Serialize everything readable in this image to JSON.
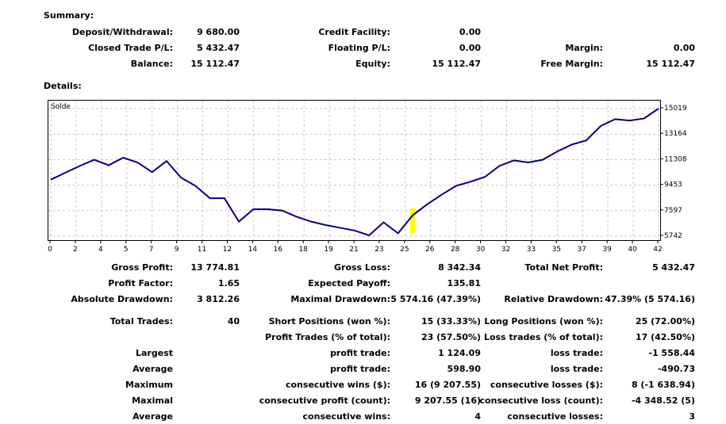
{
  "summary": {
    "heading": "Summary:",
    "deposit_label": "Deposit/Withdrawal:",
    "deposit_value": "9 680.00",
    "credit_label": "Credit Facility:",
    "credit_value": "0.00",
    "closed_label": "Closed Trade P/L:",
    "closed_value": "5 432.47",
    "floating_label": "Floating P/L:",
    "floating_value": "0.00",
    "margin_label": "Margin:",
    "margin_value": "0.00",
    "balance_label": "Balance:",
    "balance_value": "15 112.47",
    "equity_label": "Equity:",
    "equity_value": "15 112.47",
    "free_margin_label": "Free Margin:",
    "free_margin_value": "15 112.47"
  },
  "details": {
    "heading": "Details:",
    "gross_profit_label": "Gross Profit:",
    "gross_profit_value": "13 774.81",
    "gross_loss_label": "Gross Loss:",
    "gross_loss_value": "8 342.34",
    "total_net_label": "Total Net Profit:",
    "total_net_value": "5 432.47",
    "profit_factor_label": "Profit Factor:",
    "profit_factor_value": "1.65",
    "expected_payoff_label": "Expected Payoff:",
    "expected_payoff_value": "135.81",
    "abs_dd_label": "Absolute Drawdown:",
    "abs_dd_value": "3 812.26",
    "max_dd_label": "Maximal Drawdown:",
    "max_dd_value": "5 574.16 (47.39%)",
    "rel_dd_label": "Relative Drawdown:",
    "rel_dd_value": "47.39% (5 574.16)",
    "total_trades_label": "Total Trades:",
    "total_trades_value": "40",
    "short_label": "Short Positions (won %):",
    "short_value": "15 (33.33%)",
    "long_label": "Long Positions (won %):",
    "long_value": "25 (72.00%)",
    "profit_trades_label": "Profit Trades (% of total):",
    "profit_trades_value": "23 (57.50%)",
    "loss_trades_label": "Loss trades (% of total):",
    "loss_trades_value": "17 (42.50%)",
    "largest_label": "Largest",
    "largest_profit_label": "profit trade:",
    "largest_profit_value": "1 124.09",
    "largest_loss_label": "loss trade:",
    "largest_loss_value": "-1 558.44",
    "average_label": "Average",
    "average_profit_label": "profit trade:",
    "average_profit_value": "598.90",
    "average_loss_label": "loss trade:",
    "average_loss_value": "-490.73",
    "maximum_label": "Maximum",
    "max_cons_wins_label": "consecutive wins ($):",
    "max_cons_wins_value": "16 (9 207.55)",
    "max_cons_losses_label": "consecutive losses ($):",
    "max_cons_losses_value": "8 (-1 638.94)",
    "maximal_label": "Maximal",
    "maximal_profit_label": "consecutive profit (count):",
    "maximal_profit_value": "9 207.55 (16)",
    "maximal_loss_label": "consecutive loss (count):",
    "maximal_loss_value": "-4 348.52 (5)",
    "average2_label": "Average",
    "avg_cons_wins_label": "consecutive wins:",
    "avg_cons_wins_value": "4",
    "avg_cons_losses_label": "consecutive losses:",
    "avg_cons_losses_value": "3"
  },
  "chart_data": {
    "type": "line",
    "title": "Solde",
    "series": [
      {
        "name": "Solde",
        "color": "#000080",
        "x": [
          0,
          1,
          2,
          3,
          4,
          5,
          6,
          7,
          8,
          9,
          10,
          11,
          12,
          13,
          14,
          15,
          16,
          17,
          18,
          19,
          20,
          21,
          22,
          23,
          24,
          25,
          26,
          27,
          28,
          29,
          30,
          31,
          32,
          33,
          34,
          35,
          36,
          37,
          38,
          39,
          40,
          41,
          42
        ],
        "values": [
          9850,
          10350,
          10850,
          11300,
          10900,
          11450,
          11100,
          10400,
          11200,
          10000,
          9400,
          8500,
          8500,
          6800,
          7700,
          7700,
          7600,
          7150,
          6800,
          6550,
          6350,
          6150,
          5800,
          6750,
          5950,
          7250,
          8050,
          8750,
          9400,
          9700,
          10050,
          10850,
          11250,
          11100,
          11300,
          11900,
          12400,
          12700,
          13750,
          14250,
          14150,
          14300,
          15019
        ]
      }
    ],
    "xticks": [
      "0",
      "2",
      "4",
      "5",
      "7",
      "9",
      "11",
      "12",
      "14",
      "16",
      "18",
      "19",
      "21",
      "23",
      "25",
      "26",
      "28",
      "30",
      "32",
      "33",
      "35",
      "37",
      "39",
      "40",
      "42"
    ],
    "yticks": [
      "15019",
      "13164",
      "11308",
      "9453",
      "7597",
      "5742"
    ],
    "ylim": [
      5742,
      15019
    ],
    "xlim": [
      0,
      42
    ],
    "marker_x": 25,
    "marker_color": "#ffff00",
    "grid": true
  }
}
